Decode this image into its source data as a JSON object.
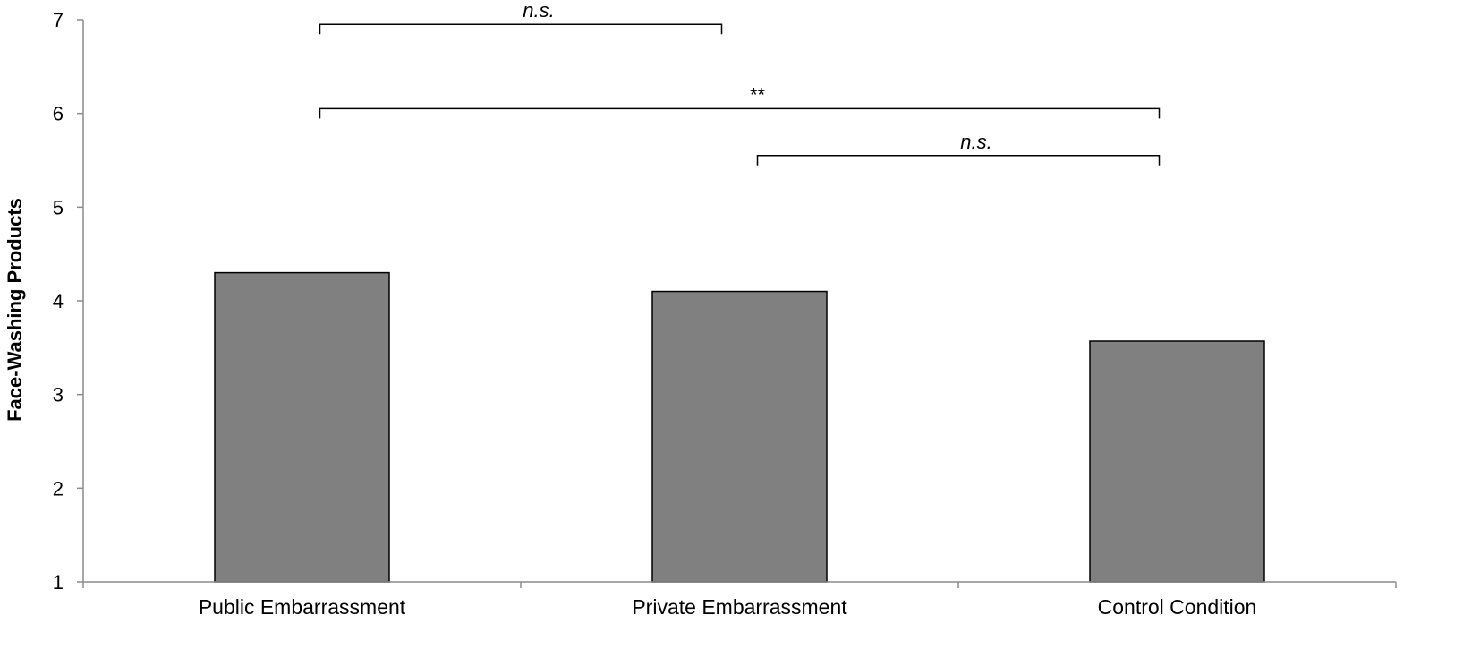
{
  "chart_data": {
    "type": "bar",
    "categories": [
      "Public Embarrassment",
      "Private Embarrassment",
      "Control Condition"
    ],
    "values": [
      4.3,
      4.1,
      3.57
    ],
    "title": "",
    "xlabel": "",
    "ylabel": "Face-Washing Products",
    "ylim": [
      1,
      7
    ],
    "yticks": [
      1,
      2,
      3,
      4,
      5,
      6,
      7
    ],
    "grid": false,
    "bar_color": "#808080",
    "bar_edge_color": "#000000",
    "annotations": [
      {
        "from": 0,
        "to": 1,
        "y": 6.95,
        "label": "n.s.",
        "italic": true
      },
      {
        "from": 0,
        "to": 2,
        "y": 6.05,
        "label": "**",
        "italic": false
      },
      {
        "from": 1,
        "to": 2,
        "y": 5.55,
        "label": "n.s.",
        "italic": true
      }
    ]
  }
}
